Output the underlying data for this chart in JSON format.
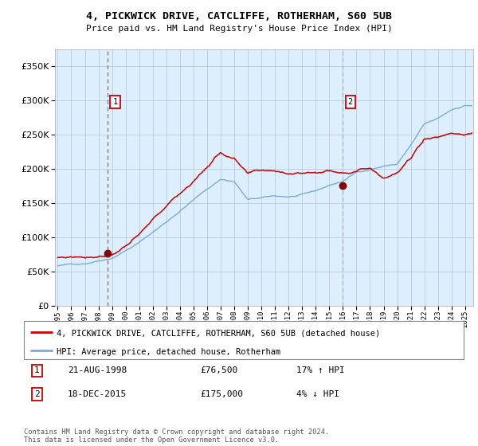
{
  "title1": "4, PICKWICK DRIVE, CATCLIFFE, ROTHERHAM, S60 5UB",
  "title2": "Price paid vs. HM Land Registry's House Price Index (HPI)",
  "legend_line1": "4, PICKWICK DRIVE, CATCLIFFE, ROTHERHAM, S60 5UB (detached house)",
  "legend_line2": "HPI: Average price, detached house, Rotherham",
  "annotation1_date": "21-AUG-1998",
  "annotation1_price": "£76,500",
  "annotation1_hpi": "17% ↑ HPI",
  "annotation2_date": "18-DEC-2015",
  "annotation2_price": "£175,000",
  "annotation2_hpi": "4% ↓ HPI",
  "footer": "Contains HM Land Registry data © Crown copyright and database right 2024.\nThis data is licensed under the Open Government Licence v3.0.",
  "hpi_color": "#7aacdc",
  "price_color": "#cc0000",
  "dot_color": "#880000",
  "vline1_color": "#cc3333",
  "vline2_color": "#aaaaaa",
  "bg_color": "#ddeeff",
  "plot_bg": "#ffffff",
  "ann_box_color": "#cc0000",
  "ylim": [
    0,
    375000
  ],
  "yticks": [
    0,
    50000,
    100000,
    150000,
    200000,
    250000,
    300000,
    350000
  ],
  "year_start": 1995,
  "year_end": 2025,
  "sale1_year": 1998.646,
  "sale1_price": 76500,
  "sale2_year": 2015.962,
  "sale2_price": 175000,
  "hpi_keypoints_x": [
    1995,
    1997,
    1999,
    2001,
    2003,
    2005,
    2007,
    2008,
    2009,
    2010,
    2011,
    2012,
    2013,
    2014,
    2015,
    2016,
    2017,
    2018,
    2019,
    2020,
    2021,
    2022,
    2023,
    2024,
    2025
  ],
  "hpi_keypoints_y": [
    58000,
    62000,
    72000,
    95000,
    125000,
    158000,
    188000,
    185000,
    158000,
    160000,
    162000,
    161000,
    163000,
    168000,
    176000,
    182000,
    195000,
    200000,
    205000,
    208000,
    235000,
    265000,
    272000,
    285000,
    292000
  ],
  "prop_keypoints_x": [
    1995,
    1997,
    1999,
    2001,
    2003,
    2005,
    2007,
    2008,
    2009,
    2010,
    2011,
    2012,
    2013,
    2014,
    2015,
    2016,
    2017,
    2018,
    2019,
    2020,
    2021,
    2022,
    2023,
    2024,
    2025
  ],
  "prop_keypoints_y": [
    70000,
    73000,
    80000,
    108000,
    148000,
    185000,
    228000,
    218000,
    193000,
    196000,
    196000,
    195000,
    196000,
    198000,
    200000,
    200000,
    205000,
    210000,
    198000,
    205000,
    225000,
    255000,
    258000,
    265000,
    265000
  ]
}
